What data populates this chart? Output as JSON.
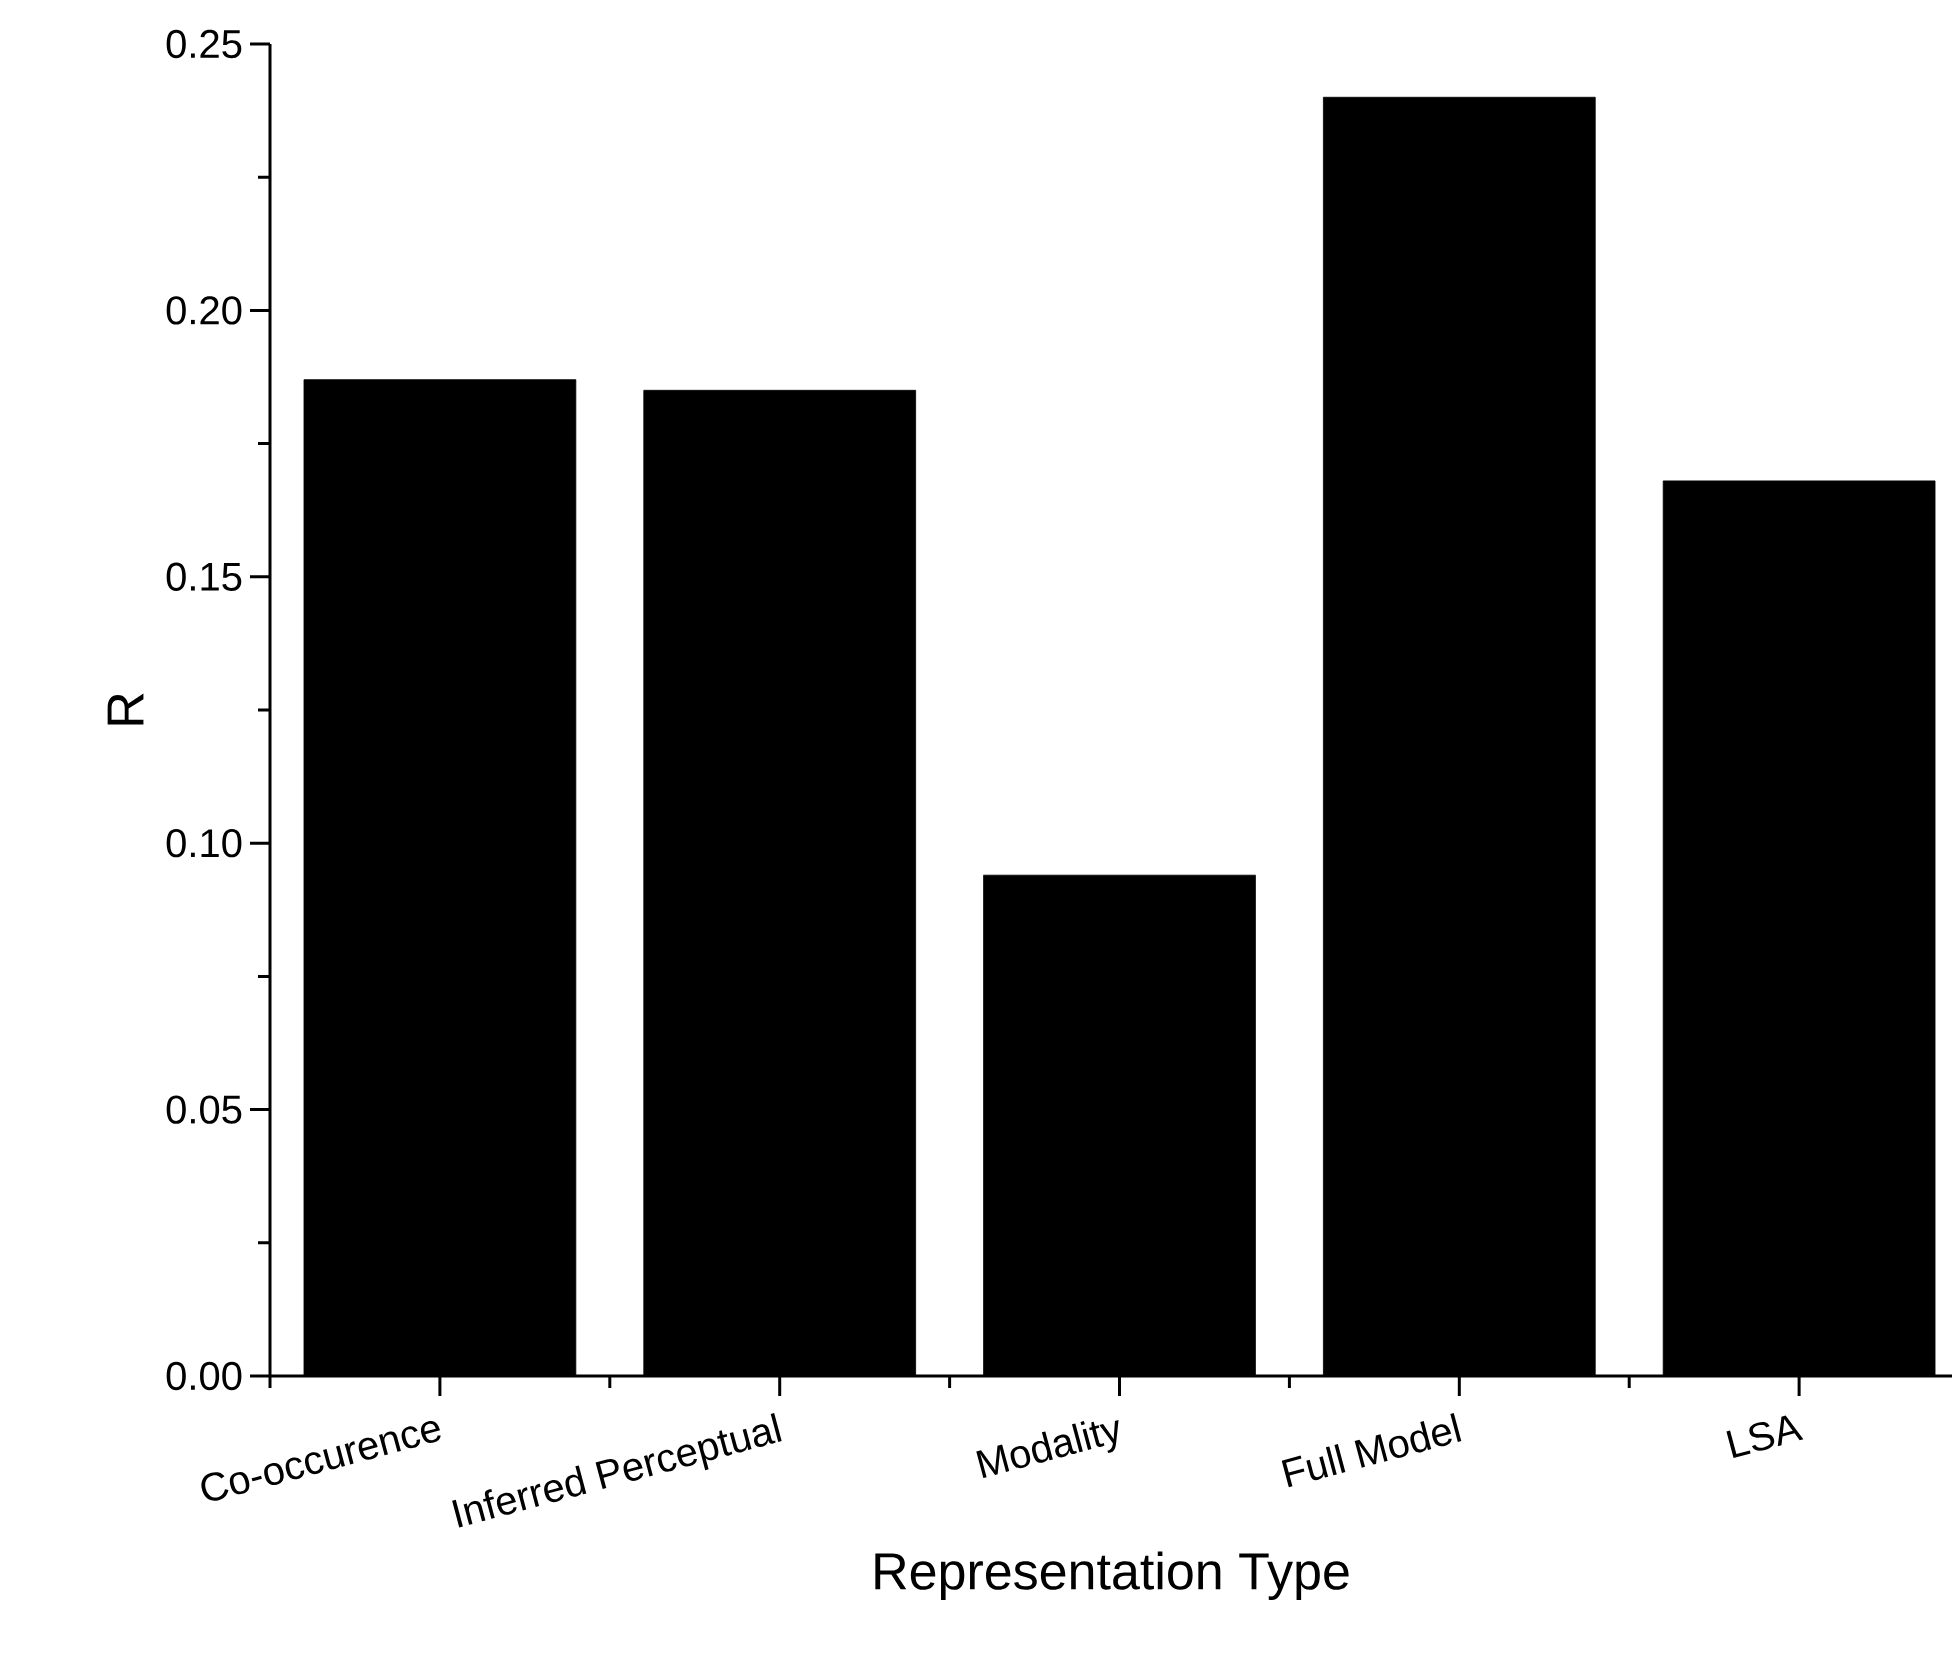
{
  "chart_data": {
    "type": "bar",
    "xlabel": "Representation Type",
    "ylabel": "R",
    "categories": [
      "Co-occurence",
      "Inferred Perceptual",
      "Modality",
      "Full Model",
      "LSA"
    ],
    "values": [
      0.187,
      0.185,
      0.094,
      0.24,
      0.168
    ],
    "color": "#000000",
    "ylim": [
      0,
      0.25
    ],
    "yticks": [
      {
        "value": 0,
        "label": "0.00"
      },
      {
        "value": 0.05,
        "label": "0.05"
      },
      {
        "value": 0.1,
        "label": "0.10"
      },
      {
        "value": 0.15,
        "label": "0.15"
      },
      {
        "value": 0.2,
        "label": "0.20"
      },
      {
        "value": 0.25,
        "label": "0.25"
      }
    ]
  }
}
